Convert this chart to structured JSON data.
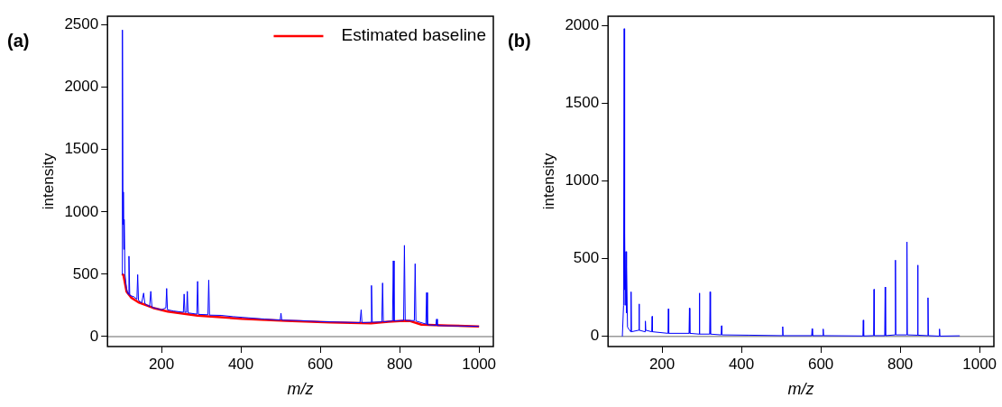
{
  "chart_data": [
    {
      "type": "line",
      "title": "(a)",
      "xlabel": "m/z",
      "ylabel": "intensity",
      "xlim": [
        64,
        1036
      ],
      "ylim": [
        -80,
        2570
      ],
      "xticks": [
        200,
        400,
        600,
        800,
        1000
      ],
      "yticks": [
        0,
        500,
        1000,
        1500,
        2000,
        2500
      ],
      "grid": false,
      "legend": "top right",
      "marker": "none",
      "line_style": "solid",
      "ref_lines": [
        {
          "axis": "y",
          "value": 0,
          "color": "#999999"
        }
      ],
      "series": [
        {
          "color": "#0000ff",
          "x": [
            100,
            101,
            102,
            103,
            104,
            105,
            106,
            108,
            112,
            116,
            118,
            120,
            130,
            138,
            140,
            142,
            150,
            155,
            158,
            170,
            173,
            176,
            200,
            211,
            213,
            215,
            230,
            255,
            257,
            259,
            263,
            265,
            267,
            289,
            291,
            293,
            317,
            319,
            321,
            350,
            380,
            420,
            460,
            499,
            501,
            503,
            550,
            600,
            650,
            700,
            703,
            705,
            727,
            729,
            731,
            755,
            757,
            759,
            782,
            784,
            786,
            810,
            812,
            814,
            837,
            839,
            841,
            866,
            868,
            870,
            891,
            893,
            895,
            950,
            1000
          ],
          "values": [
            500,
            700,
            2460,
            900,
            1160,
            700,
            940,
            500,
            380,
            340,
            645,
            330,
            320,
            300,
            497,
            290,
            270,
            349,
            265,
            240,
            363,
            235,
            215,
            230,
            386,
            215,
            205,
            195,
            341,
            195,
            195,
            363,
            190,
            180,
            443,
            178,
            175,
            453,
            172,
            170,
            160,
            150,
            140,
            132,
            188,
            132,
            128,
            120,
            116,
            112,
            215,
            112,
            115,
            410,
            115,
            118,
            430,
            118,
            125,
            608,
            125,
            130,
            732,
            130,
            128,
            584,
            125,
            100,
            353,
            95,
            90,
            140,
            88,
            85,
            82
          ]
        },
        {
          "name": "Estimated baseline",
          "color": "#ff0000",
          "x": [
            100,
            104,
            112,
            124,
            142,
            179,
            216,
            291,
            402,
            513,
            625,
            728,
            772,
            810,
            827,
            855,
            922,
            1000
          ],
          "values": [
            500,
            495,
            360,
            312,
            275,
            230,
            200,
            168,
            143,
            126,
            114,
            106,
            119,
            126,
            124,
            96,
            89,
            82
          ]
        }
      ]
    },
    {
      "type": "line",
      "title": "(b)",
      "xlabel": "m/z",
      "ylabel": "intensity",
      "xlim": [
        64,
        1036
      ],
      "ylim": [
        -65,
        2060
      ],
      "xticks": [
        200,
        400,
        600,
        800,
        1000
      ],
      "yticks": [
        0,
        500,
        1000,
        1500,
        2000
      ],
      "grid": false,
      "legend": false,
      "marker": "none",
      "line_style": "solid",
      "ref_lines": [
        {
          "axis": "y",
          "value": 0,
          "color": "#999999"
        }
      ],
      "series": [
        {
          "color": "#0000ff",
          "x": [
            100,
            103,
            104.6,
            105.5,
            106,
            107,
            109,
            110,
            111,
            113,
            121,
            122,
            123,
            141,
            142,
            143,
            157,
            158,
            159,
            174,
            175,
            176,
            215,
            216,
            217,
            268,
            269,
            270,
            293,
            294,
            295,
            320,
            321,
            322,
            349,
            350,
            351,
            420,
            503,
            504,
            505,
            577,
            578,
            579,
            605,
            606,
            607,
            706,
            707,
            708,
            733,
            734,
            735,
            761,
            762,
            763,
            787,
            788,
            789,
            816,
            817,
            818,
            843,
            844,
            845,
            869,
            870,
            871,
            898,
            899,
            900,
            950
          ],
          "values": [
            0,
            200,
            1980,
            300,
            665,
            200,
            546,
            150,
            447,
            60,
            30,
            287,
            30,
            40,
            209,
            40,
            30,
            99,
            40,
            30,
            129,
            30,
            20,
            178,
            20,
            20,
            182,
            20,
            15,
            279,
            15,
            15,
            287,
            15,
            10,
            69,
            10,
            8,
            5,
            63,
            5,
            5,
            50,
            5,
            5,
            48,
            5,
            3,
            105,
            3,
            5,
            303,
            5,
            5,
            318,
            5,
            10,
            491,
            10,
            10,
            608,
            10,
            8,
            459,
            8,
            5,
            249,
            5,
            2,
            48,
            2,
            4
          ]
        }
      ]
    }
  ]
}
